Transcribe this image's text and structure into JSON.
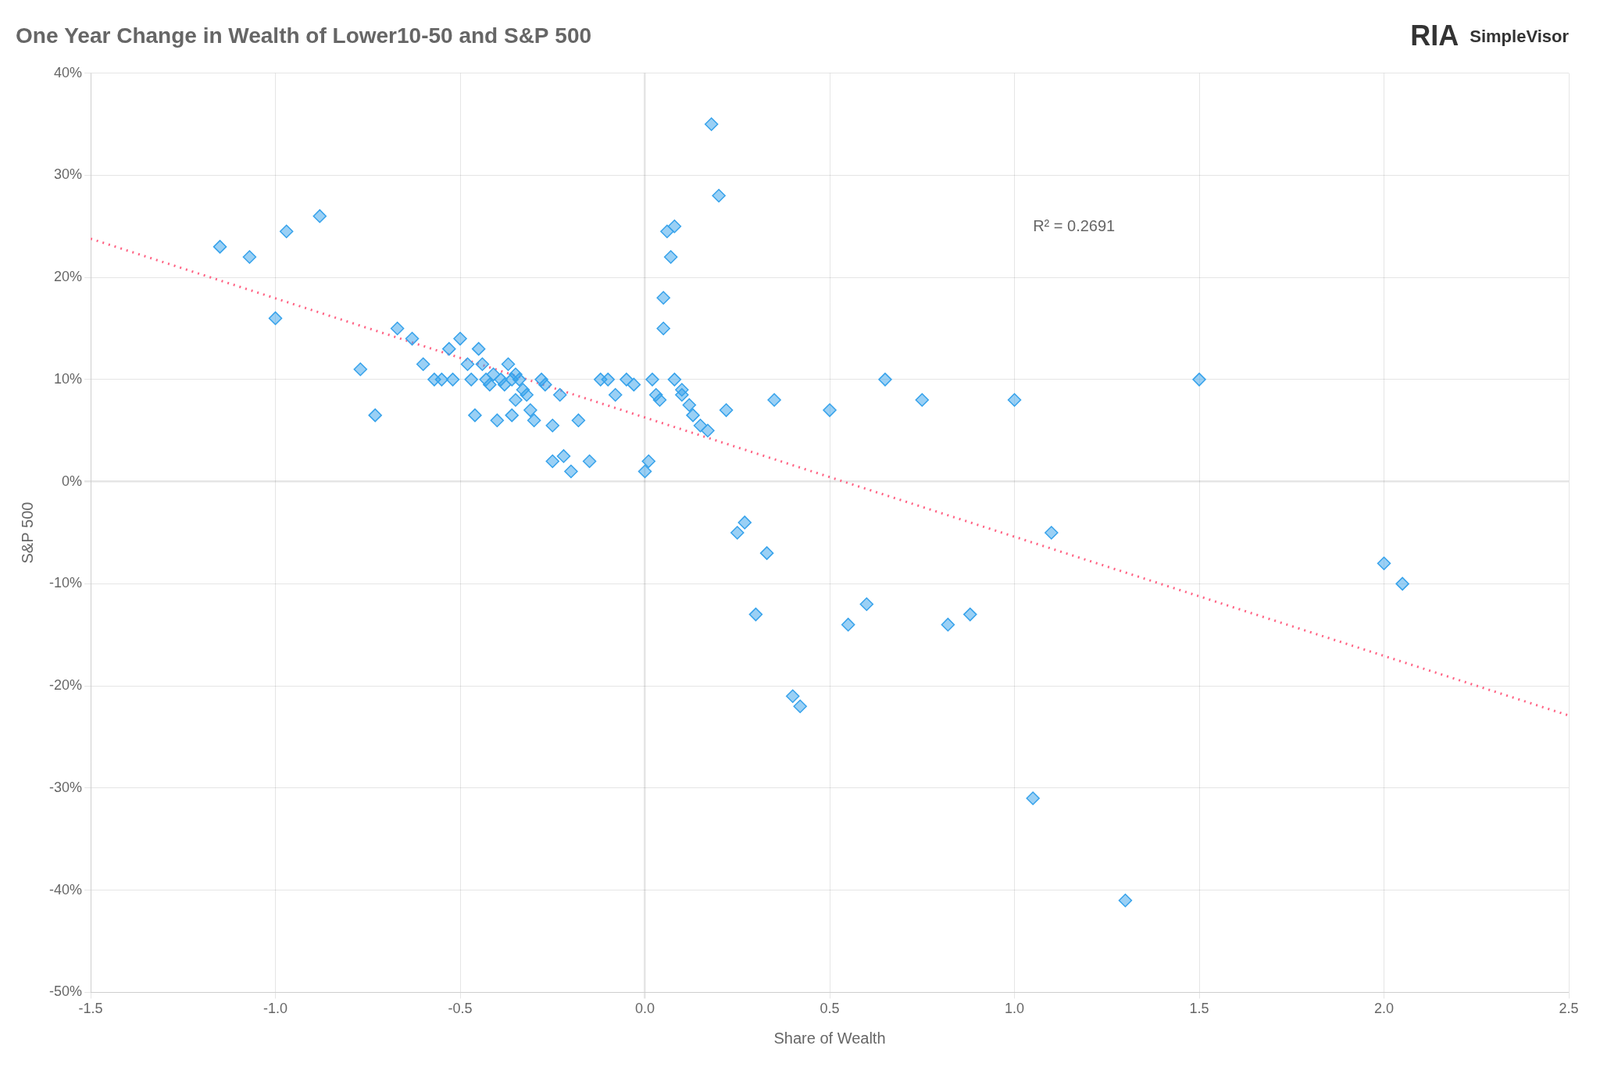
{
  "chart_data": {
    "type": "scatter",
    "title": "One Year Change in Wealth of Lower10-50 and S&P 500",
    "xlabel": "Share of Wealth",
    "ylabel": "S&P 500",
    "xlim": [
      -1.5,
      2.5
    ],
    "ylim": [
      -0.5,
      0.4
    ],
    "xticks": [
      -1.5,
      {
        "value": -1.0,
        "label": "-1.0"
      },
      -0.5,
      {
        "value": 0.0,
        "label": "0.0"
      },
      0.5,
      {
        "value": 1.0,
        "label": "1.0"
      },
      1.5,
      {
        "value": 2.0,
        "label": "2.0"
      },
      2.5
    ],
    "yticks": [
      {
        "value": -0.5,
        "label": "-50%"
      },
      {
        "value": -0.4,
        "label": "-40%"
      },
      {
        "value": -0.3,
        "label": "-30%"
      },
      {
        "value": -0.2,
        "label": "-20%"
      },
      {
        "value": -0.1,
        "label": "-10%"
      },
      {
        "value": 0.0,
        "label": "0%"
      },
      {
        "value": 0.1,
        "label": "10%"
      },
      {
        "value": 0.2,
        "label": "20%"
      },
      {
        "value": 0.3,
        "label": "30%"
      },
      {
        "value": 0.4,
        "label": "40%"
      }
    ],
    "grid": true,
    "series": [
      {
        "type": "scatter",
        "marker": "diamond",
        "x": [
          -1.15,
          -1.07,
          -1.0,
          -0.97,
          -0.88,
          -0.77,
          -0.73,
          -0.67,
          -0.63,
          -0.6,
          -0.57,
          -0.55,
          -0.53,
          -0.52,
          -0.5,
          -0.48,
          -0.47,
          -0.46,
          -0.45,
          -0.44,
          -0.43,
          -0.42,
          -0.41,
          -0.4,
          -0.39,
          -0.38,
          -0.37,
          -0.36,
          -0.36,
          -0.35,
          -0.35,
          -0.34,
          -0.33,
          -0.32,
          -0.31,
          -0.3,
          -0.28,
          -0.27,
          -0.25,
          -0.25,
          -0.23,
          -0.22,
          -0.2,
          -0.18,
          -0.15,
          -0.12,
          -0.1,
          -0.08,
          -0.05,
          -0.03,
          0.0,
          0.01,
          0.02,
          0.03,
          0.04,
          0.05,
          0.05,
          0.06,
          0.07,
          0.08,
          0.08,
          0.1,
          0.1,
          0.12,
          0.13,
          0.15,
          0.17,
          0.18,
          0.2,
          0.22,
          0.25,
          0.27,
          0.3,
          0.33,
          0.35,
          0.4,
          0.42,
          0.5,
          0.55,
          0.6,
          0.65,
          0.75,
          0.82,
          0.88,
          1.0,
          1.05,
          1.1,
          1.3,
          1.5,
          2.0,
          2.05
        ],
        "values": [
          0.23,
          0.22,
          0.16,
          0.245,
          0.26,
          0.11,
          0.065,
          0.15,
          0.14,
          0.115,
          0.1,
          0.1,
          0.13,
          0.1,
          0.14,
          0.115,
          0.1,
          0.065,
          0.13,
          0.115,
          0.1,
          0.095,
          0.105,
          0.06,
          0.1,
          0.095,
          0.115,
          0.1,
          0.065,
          0.105,
          0.08,
          0.1,
          0.09,
          0.085,
          0.07,
          0.06,
          0.1,
          0.095,
          0.055,
          0.02,
          0.085,
          0.025,
          0.01,
          0.06,
          0.02,
          0.1,
          0.1,
          0.085,
          0.1,
          0.095,
          0.01,
          0.02,
          0.1,
          0.085,
          0.08,
          0.15,
          0.18,
          0.245,
          0.22,
          0.1,
          0.25,
          0.09,
          0.085,
          0.075,
          0.065,
          0.055,
          0.05,
          0.35,
          0.28,
          0.07,
          -0.05,
          -0.04,
          -0.13,
          -0.07,
          0.08,
          -0.21,
          -0.22,
          0.07,
          -0.14,
          -0.12,
          0.1,
          0.08,
          -0.14,
          -0.13,
          0.08,
          -0.31,
          -0.05,
          -0.41,
          0.1,
          -0.08,
          -0.1
        ]
      },
      {
        "type": "line",
        "line_style": "dotted",
        "x": [
          -1.5,
          2.5
        ],
        "values": [
          0.237867,
          -0.228966
        ]
      }
    ],
    "annotations": [
      {
        "text": "R² = 0.2691",
        "x": 1.05,
        "y": 0.245
      },
      {
        "text": "RIA"
      },
      {
        "text": "SimpleVisor"
      }
    ]
  }
}
